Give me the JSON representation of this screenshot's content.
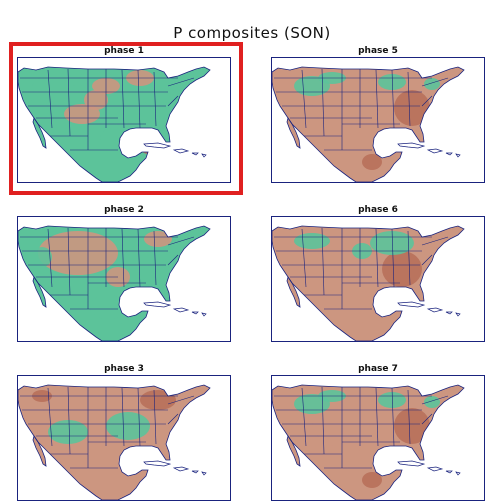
{
  "title": "P composites (SON)",
  "colors": {
    "positive": "#5cc39a",
    "negative": "#cc9680",
    "strong_negative": "#b8705a",
    "border": "#1a237e",
    "highlight": "#e02020"
  },
  "panels": [
    {
      "label": "phase 1",
      "pattern": "wet"
    },
    {
      "label": "phase 5",
      "pattern": "dry"
    },
    {
      "label": "phase 2",
      "pattern": "mixed-wet-east"
    },
    {
      "label": "phase 6",
      "pattern": "dry-south"
    },
    {
      "label": "phase 3",
      "pattern": "dry-north"
    },
    {
      "label": "phase 7",
      "pattern": "dry"
    }
  ],
  "highlighted_panel": "phase 1"
}
